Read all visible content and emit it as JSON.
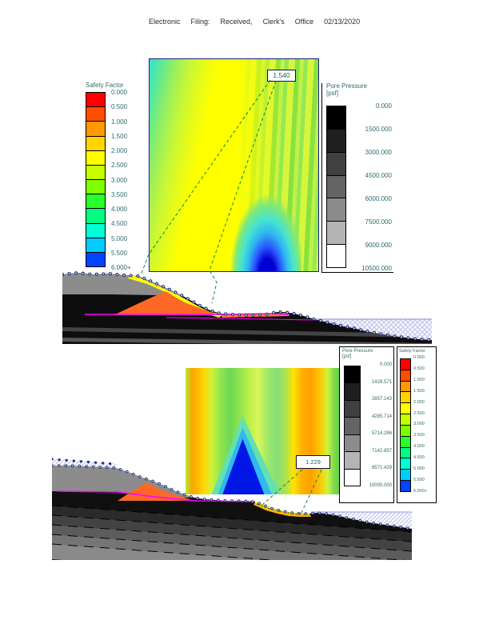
{
  "header": {
    "items": [
      "Electronic",
      "Filing:",
      "Received,",
      "Clerk's",
      "Office",
      "02/13/2020"
    ]
  },
  "figures": {
    "top": {
      "sf_title": "Safety Factor",
      "pp_title": "Pore Pressure",
      "pp_unit": "[psf]",
      "fs_min": "1.540"
    },
    "bottom": {
      "sf_title": "Safety Factor",
      "pp_title": "Pore Pressure",
      "pp_unit": "[psf]",
      "fs_min": "1.229"
    }
  },
  "scales": {
    "safety_factor_labels": [
      "0.000",
      "0.500",
      "1.000",
      "1.500",
      "2.000",
      "2.500",
      "3.000",
      "3.500",
      "4.000",
      "4.500",
      "5.000",
      "5.500",
      "6.000+"
    ],
    "pore_pressure_labels_top": [
      "0.000",
      "1500.000",
      "3000.000",
      "4500.000",
      "6000.000",
      "7500.000",
      "9000.000",
      "10500.000"
    ],
    "pore_pressure_labels_bottom": [
      "0.000",
      "1428.571",
      "2857.143",
      "4285.714",
      "5714.286",
      "7142.857",
      "8571.429",
      "10000.000"
    ]
  },
  "colors": {
    "safety_factor_scale": [
      "#ff0000",
      "#ff4d00",
      "#ff9900",
      "#ffd500",
      "#ffff00",
      "#c8ff00",
      "#80ff00",
      "#2bff2b",
      "#00ff80",
      "#00ffd5",
      "#00ccff",
      "#0044ff"
    ],
    "pore_pressure_scale": [
      "#000000",
      "#1f1f1f",
      "#404040",
      "#646464",
      "#8c8c8c",
      "#b4b4b4",
      "#ffffff"
    ],
    "embankment_orange": "#ff6726",
    "slip_band_yellow": "#ffff00",
    "piezometric_magenta": "#ff00ff",
    "leader_dash_green": "#0c8a3c",
    "water_hatch_blue": "#c3c3ec"
  }
}
